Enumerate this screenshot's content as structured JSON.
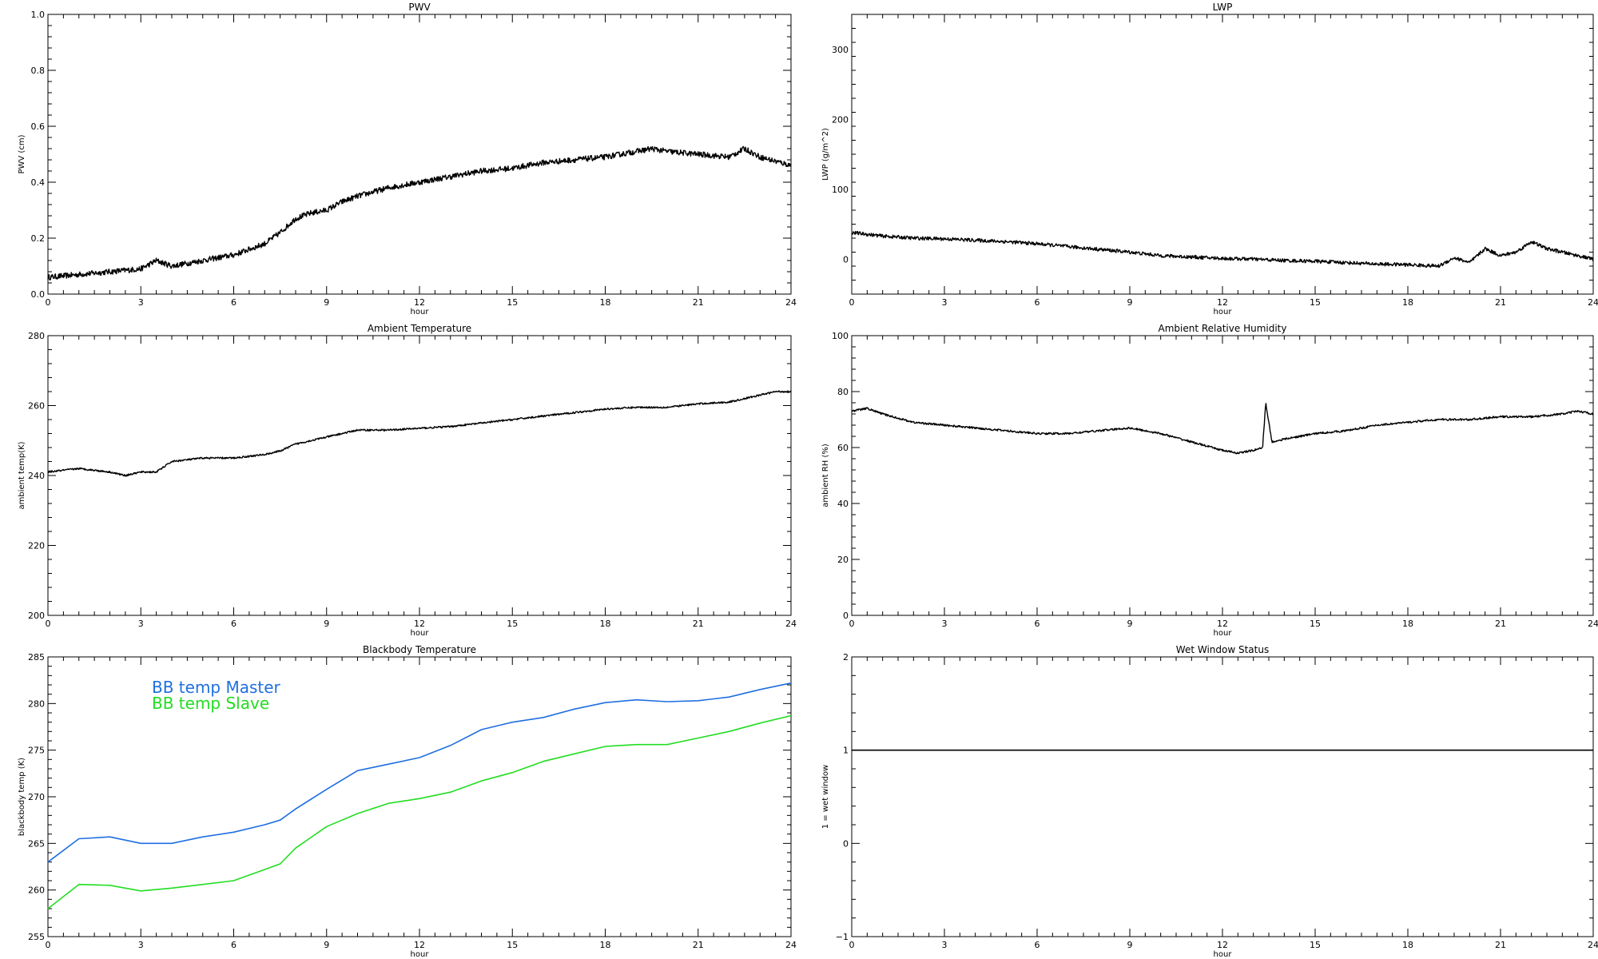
{
  "figure": {
    "background": "#ffffff"
  },
  "chart_data": [
    {
      "id": "pwv",
      "type": "scatter",
      "title": "PWV",
      "xlabel": "hour",
      "ylabel": "PWV (cm)",
      "xlim": [
        0,
        24
      ],
      "ylim": [
        0,
        1.0
      ],
      "xticks": [
        0,
        3,
        6,
        9,
        12,
        15,
        18,
        21,
        24
      ],
      "yticks": [
        0.0,
        0.2,
        0.4,
        0.6,
        0.8,
        1.0
      ],
      "ytick_labels": [
        "0.0",
        "0.2",
        "0.4",
        "0.6",
        "0.8",
        "1.0"
      ],
      "series": [
        {
          "color": "#000000",
          "noise": 0.01,
          "x": [
            0,
            1,
            2,
            3,
            3.5,
            4,
            5,
            6,
            7,
            7.5,
            8,
            8.5,
            9,
            9.5,
            10,
            11,
            12,
            13,
            14,
            15,
            16,
            17,
            18,
            19,
            19.5,
            20,
            21,
            22,
            22.5,
            23,
            24
          ],
          "y": [
            0.06,
            0.07,
            0.08,
            0.09,
            0.12,
            0.1,
            0.12,
            0.14,
            0.18,
            0.22,
            0.27,
            0.29,
            0.3,
            0.33,
            0.35,
            0.38,
            0.4,
            0.42,
            0.44,
            0.45,
            0.47,
            0.48,
            0.49,
            0.51,
            0.52,
            0.51,
            0.5,
            0.49,
            0.52,
            0.49,
            0.46
          ]
        }
      ]
    },
    {
      "id": "lwp",
      "type": "scatter",
      "title": "LWP",
      "xlabel": "hour",
      "ylabel": "LWP (g/m^2)",
      "xlim": [
        0,
        24
      ],
      "ylim": [
        -50,
        350
      ],
      "xticks": [
        0,
        3,
        6,
        9,
        12,
        15,
        18,
        21,
        24
      ],
      "yticks": [
        0,
        100,
        200,
        300
      ],
      "ytick_labels": [
        "0",
        "100",
        "200",
        "300"
      ],
      "series": [
        {
          "color": "#000000",
          "noise": 2.5,
          "x": [
            0,
            1,
            2,
            3,
            4,
            5,
            6,
            7,
            8,
            9,
            10,
            11,
            12,
            13,
            14,
            15,
            16,
            17,
            18,
            19,
            19.5,
            20,
            20.5,
            21,
            21.5,
            22,
            22.5,
            23,
            23.5,
            24
          ],
          "y": [
            38,
            33,
            30,
            29,
            27,
            25,
            22,
            18,
            14,
            10,
            5,
            3,
            1,
            0,
            -2,
            -3,
            -5,
            -7,
            -8,
            -10,
            2,
            -5,
            15,
            5,
            10,
            25,
            15,
            10,
            5,
            0
          ]
        }
      ]
    },
    {
      "id": "temp",
      "type": "line",
      "title": "Ambient Temperature",
      "xlabel": "hour",
      "ylabel": "ambient temp(K)",
      "xlim": [
        0,
        24
      ],
      "ylim": [
        200,
        280
      ],
      "xticks": [
        0,
        3,
        6,
        9,
        12,
        15,
        18,
        21,
        24
      ],
      "yticks": [
        200,
        220,
        240,
        260,
        280
      ],
      "ytick_labels": [
        "200",
        "220",
        "240",
        "260",
        "280"
      ],
      "series": [
        {
          "color": "#000000",
          "noise": 0.25,
          "x": [
            0,
            1,
            2,
            2.5,
            3,
            3.5,
            4,
            5,
            6,
            7,
            7.5,
            8,
            9,
            10,
            11,
            12,
            13,
            14,
            15,
            16,
            17,
            18,
            19,
            20,
            21,
            22,
            22.5,
            23,
            23.5,
            24
          ],
          "y": [
            241,
            242,
            241,
            240,
            241,
            241,
            244,
            245,
            245,
            246,
            247,
            249,
            251,
            253,
            253,
            253.5,
            254,
            255,
            256,
            257,
            258,
            259,
            259.5,
            259.5,
            260.5,
            261,
            262,
            263,
            264,
            264
          ]
        }
      ]
    },
    {
      "id": "rh",
      "type": "line",
      "title": "Ambient Relative Humidity",
      "xlabel": "hour",
      "ylabel": "ambient RH (%)",
      "xlim": [
        0,
        24
      ],
      "ylim": [
        0,
        100
      ],
      "xticks": [
        0,
        3,
        6,
        9,
        12,
        15,
        18,
        21,
        24
      ],
      "yticks": [
        0,
        20,
        40,
        60,
        80,
        100
      ],
      "ytick_labels": [
        "0",
        "20",
        "40",
        "60",
        "80",
        "100"
      ],
      "series": [
        {
          "color": "#000000",
          "noise": 0.35,
          "x": [
            0,
            0.5,
            1,
            2,
            3,
            4,
            5,
            6,
            7,
            8,
            9,
            10,
            11,
            12,
            12.5,
            13,
            13.3,
            13.4,
            13.6,
            14,
            15,
            16,
            17,
            18,
            19,
            20,
            21,
            22,
            23,
            23.5,
            24
          ],
          "y": [
            73,
            74,
            72,
            69,
            68,
            67,
            66,
            65,
            65,
            66,
            67,
            65,
            62,
            59,
            58,
            59,
            60,
            76,
            62,
            63,
            65,
            66,
            68,
            69,
            70,
            70,
            71,
            71,
            72,
            73,
            72
          ]
        }
      ]
    },
    {
      "id": "bb",
      "type": "line",
      "title": "Blackbody Temperature",
      "xlabel": "hour",
      "ylabel": "blackbody temp (K)",
      "xlim": [
        0,
        24
      ],
      "ylim": [
        255,
        285
      ],
      "xticks": [
        0,
        3,
        6,
        9,
        12,
        15,
        18,
        21,
        24
      ],
      "yticks": [
        255,
        260,
        265,
        270,
        275,
        280,
        285
      ],
      "ytick_labels": [
        "255",
        "260",
        "265",
        "270",
        "275",
        "280",
        "285"
      ],
      "legend": [
        "BB temp Master",
        "BB temp Slave"
      ],
      "legend_position": "top-left",
      "series": [
        {
          "name": "BB temp Master",
          "color": "#1f6fe0",
          "noise": 0,
          "x": [
            0,
            1,
            2,
            3,
            4,
            5,
            6,
            7,
            7.5,
            8,
            9,
            10,
            11,
            12,
            13,
            14,
            15,
            16,
            17,
            18,
            19,
            20,
            21,
            22,
            23,
            24
          ],
          "y": [
            263,
            265.5,
            265.7,
            265,
            265,
            265.7,
            266.2,
            267,
            267.5,
            268.7,
            270.8,
            272.8,
            273.5,
            274.2,
            275.5,
            277.2,
            278,
            278.5,
            279.4,
            280.1,
            280.4,
            280.2,
            280.3,
            280.7,
            281.5,
            282.2
          ]
        },
        {
          "name": "BB temp Slave",
          "color": "#22dd22",
          "noise": 0,
          "x": [
            0,
            1,
            2,
            3,
            4,
            5,
            6,
            7,
            7.5,
            8,
            9,
            10,
            11,
            12,
            13,
            14,
            15,
            16,
            17,
            18,
            19,
            20,
            21,
            22,
            23,
            24
          ],
          "y": [
            258,
            260.6,
            260.5,
            259.9,
            260.2,
            260.6,
            261,
            262.2,
            262.8,
            264.5,
            266.8,
            268.2,
            269.3,
            269.8,
            270.5,
            271.7,
            272.6,
            273.8,
            274.6,
            275.4,
            275.6,
            275.6,
            276.3,
            277,
            277.9,
            278.7
          ]
        }
      ]
    },
    {
      "id": "wet",
      "type": "line",
      "title": "Wet Window Status",
      "xlabel": "hour",
      "ylabel": "1 = wet window",
      "xlim": [
        0,
        24
      ],
      "ylim": [
        -1,
        2
      ],
      "xticks": [
        0,
        3,
        6,
        9,
        12,
        15,
        18,
        21,
        24
      ],
      "yticks": [
        -1,
        0,
        1,
        2
      ],
      "ytick_labels": [
        "−1",
        "0",
        "1",
        "2"
      ],
      "series": [
        {
          "color": "#000000",
          "noise": 0,
          "x": [
            0,
            24
          ],
          "y": [
            1,
            1
          ]
        }
      ]
    }
  ]
}
